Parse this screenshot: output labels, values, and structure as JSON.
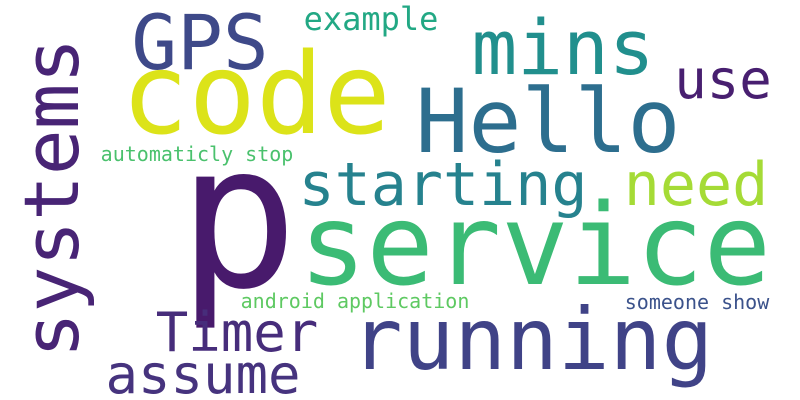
{
  "words": [
    {
      "id": "p",
      "text": "p",
      "color": "#481a6c"
    },
    {
      "id": "service",
      "text": "service",
      "color": "#3bbb75"
    },
    {
      "id": "code",
      "text": "code",
      "color": "#dce319"
    },
    {
      "id": "hello",
      "text": "Hello",
      "color": "#2d6e8e"
    },
    {
      "id": "running",
      "text": "running",
      "color": "#404387"
    },
    {
      "id": "systems",
      "text": "systems",
      "color": "#482475"
    },
    {
      "id": "mins",
      "text": "mins",
      "color": "#218f8d"
    },
    {
      "id": "gps",
      "text": "GPS",
      "color": "#3e4989"
    },
    {
      "id": "starting",
      "text": "starting",
      "color": "#26828e"
    },
    {
      "id": "need",
      "text": "need",
      "color": "#a5db36"
    },
    {
      "id": "timer",
      "text": "Timer",
      "color": "#472d7b"
    },
    {
      "id": "assume",
      "text": "assume",
      "color": "#46337e"
    },
    {
      "id": "use",
      "text": "use",
      "color": "#481f70"
    },
    {
      "id": "example",
      "text": "example",
      "color": "#22a884"
    },
    {
      "id": "automaticly",
      "text": "automaticly stop",
      "color": "#4ac16d"
    },
    {
      "id": "android",
      "text": "android application",
      "color": "#5ec962"
    },
    {
      "id": "someone",
      "text": "someone show",
      "color": "#3b528b"
    }
  ]
}
